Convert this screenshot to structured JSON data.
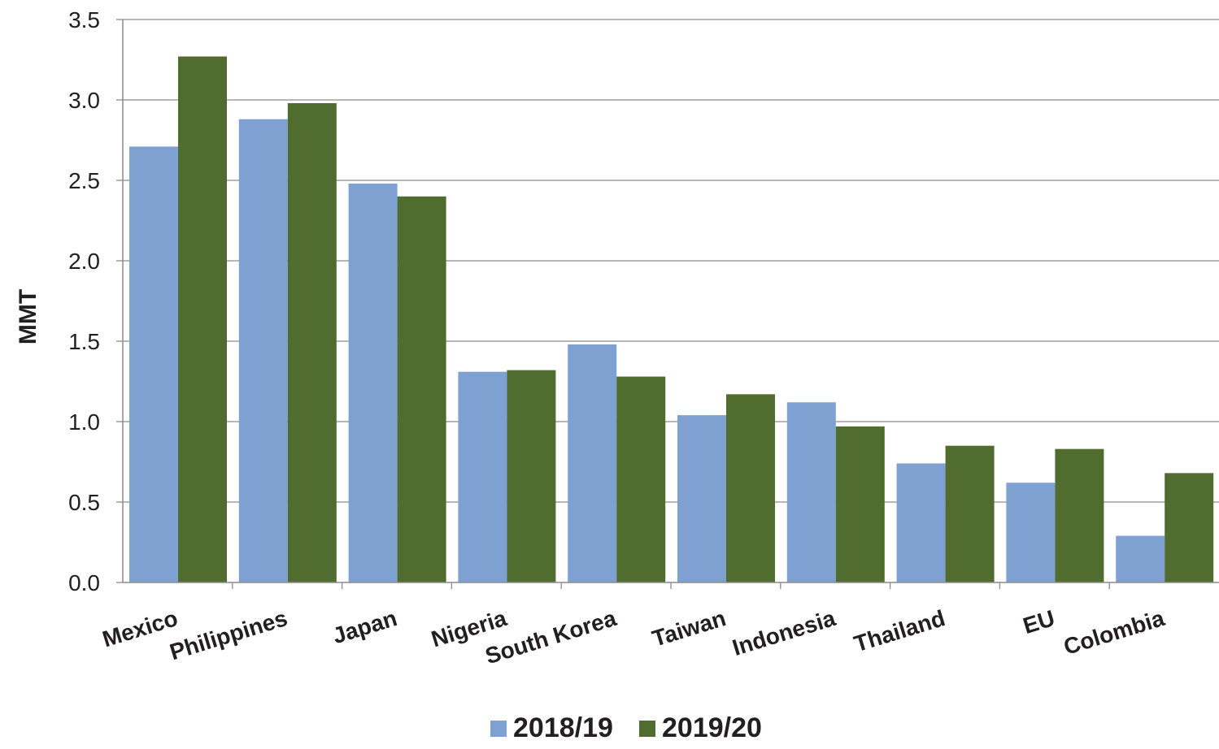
{
  "chart_data": {
    "type": "bar",
    "categories": [
      "Mexico",
      "Philippines",
      "Japan",
      "Nigeria",
      "South Korea",
      "Taiwan",
      "Indonesia",
      "Thailand",
      "EU",
      "Colombia"
    ],
    "series": [
      {
        "name": "2018/19",
        "color": "#7ea1d2",
        "values": [
          2.71,
          2.88,
          2.48,
          1.31,
          1.48,
          1.04,
          1.12,
          0.74,
          0.62,
          0.29
        ]
      },
      {
        "name": "2019/20",
        "color": "#506c2f",
        "values": [
          3.27,
          2.98,
          2.4,
          1.32,
          1.28,
          1.17,
          0.97,
          0.85,
          0.83,
          0.68
        ]
      }
    ],
    "ylabel": "MMT",
    "ylim": [
      0,
      3.5
    ],
    "yticks": [
      "0.0",
      "0.5",
      "1.0",
      "1.5",
      "2.0",
      "2.5",
      "3.0",
      "3.5"
    ],
    "grid": true,
    "legend_position": "bottom"
  }
}
